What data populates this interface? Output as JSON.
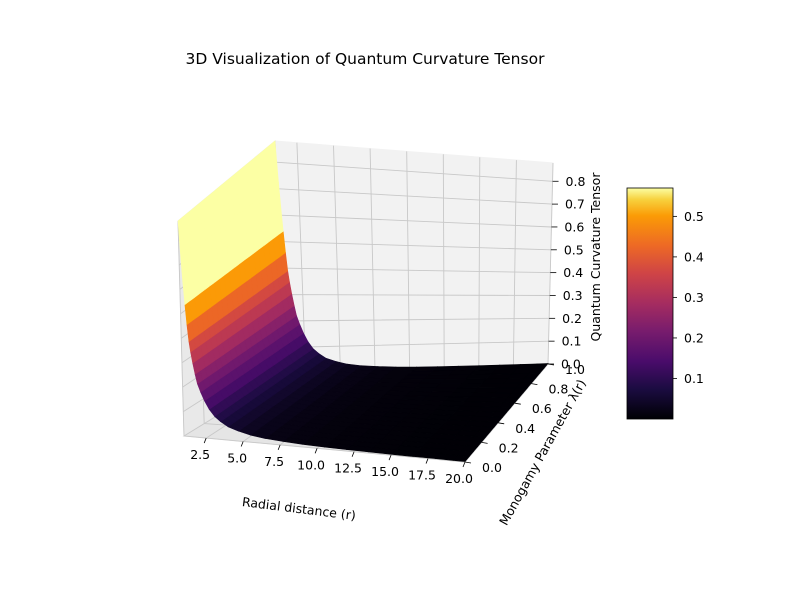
{
  "chart_data": {
    "type": "surface3d",
    "title": "3D Visualization of Quantum Curvature Tensor",
    "xlabel": "Radial distance (r)",
    "ylabel": "Monogamy Parameter λ(r)",
    "zlabel": "Quantum Curvature Tensor",
    "xlim": [
      1,
      20
    ],
    "ylim": [
      0,
      1
    ],
    "zlim": [
      0,
      0.88
    ],
    "x_ticks": [
      "2.5",
      "5.0",
      "7.5",
      "10.0",
      "12.5",
      "15.0",
      "17.5",
      "20.0"
    ],
    "y_ticks": [
      "0.0",
      "0.2",
      "0.4",
      "0.6",
      "0.8",
      "1.0"
    ],
    "z_ticks": [
      "0.0",
      "0.1",
      "0.2",
      "0.3",
      "0.4",
      "0.5",
      "0.6",
      "0.7",
      "0.8"
    ],
    "colormap": "inferno",
    "colorbar": {
      "ticks": [
        "0.1",
        "0.2",
        "0.3",
        "0.4",
        "0.5"
      ],
      "range": [
        0,
        0.57
      ]
    },
    "surface_samples": [
      {
        "r": 1.0,
        "value": 0.88
      },
      {
        "r": 1.5,
        "value": 0.39
      },
      {
        "r": 2.0,
        "value": 0.22
      },
      {
        "r": 3.0,
        "value": 0.098
      },
      {
        "r": 4.0,
        "value": 0.055
      },
      {
        "r": 6.0,
        "value": 0.024
      },
      {
        "r": 10.0,
        "value": 0.0088
      },
      {
        "r": 15.0,
        "value": 0.0039
      },
      {
        "r": 20.0,
        "value": 0.0022
      }
    ],
    "grid": true
  }
}
